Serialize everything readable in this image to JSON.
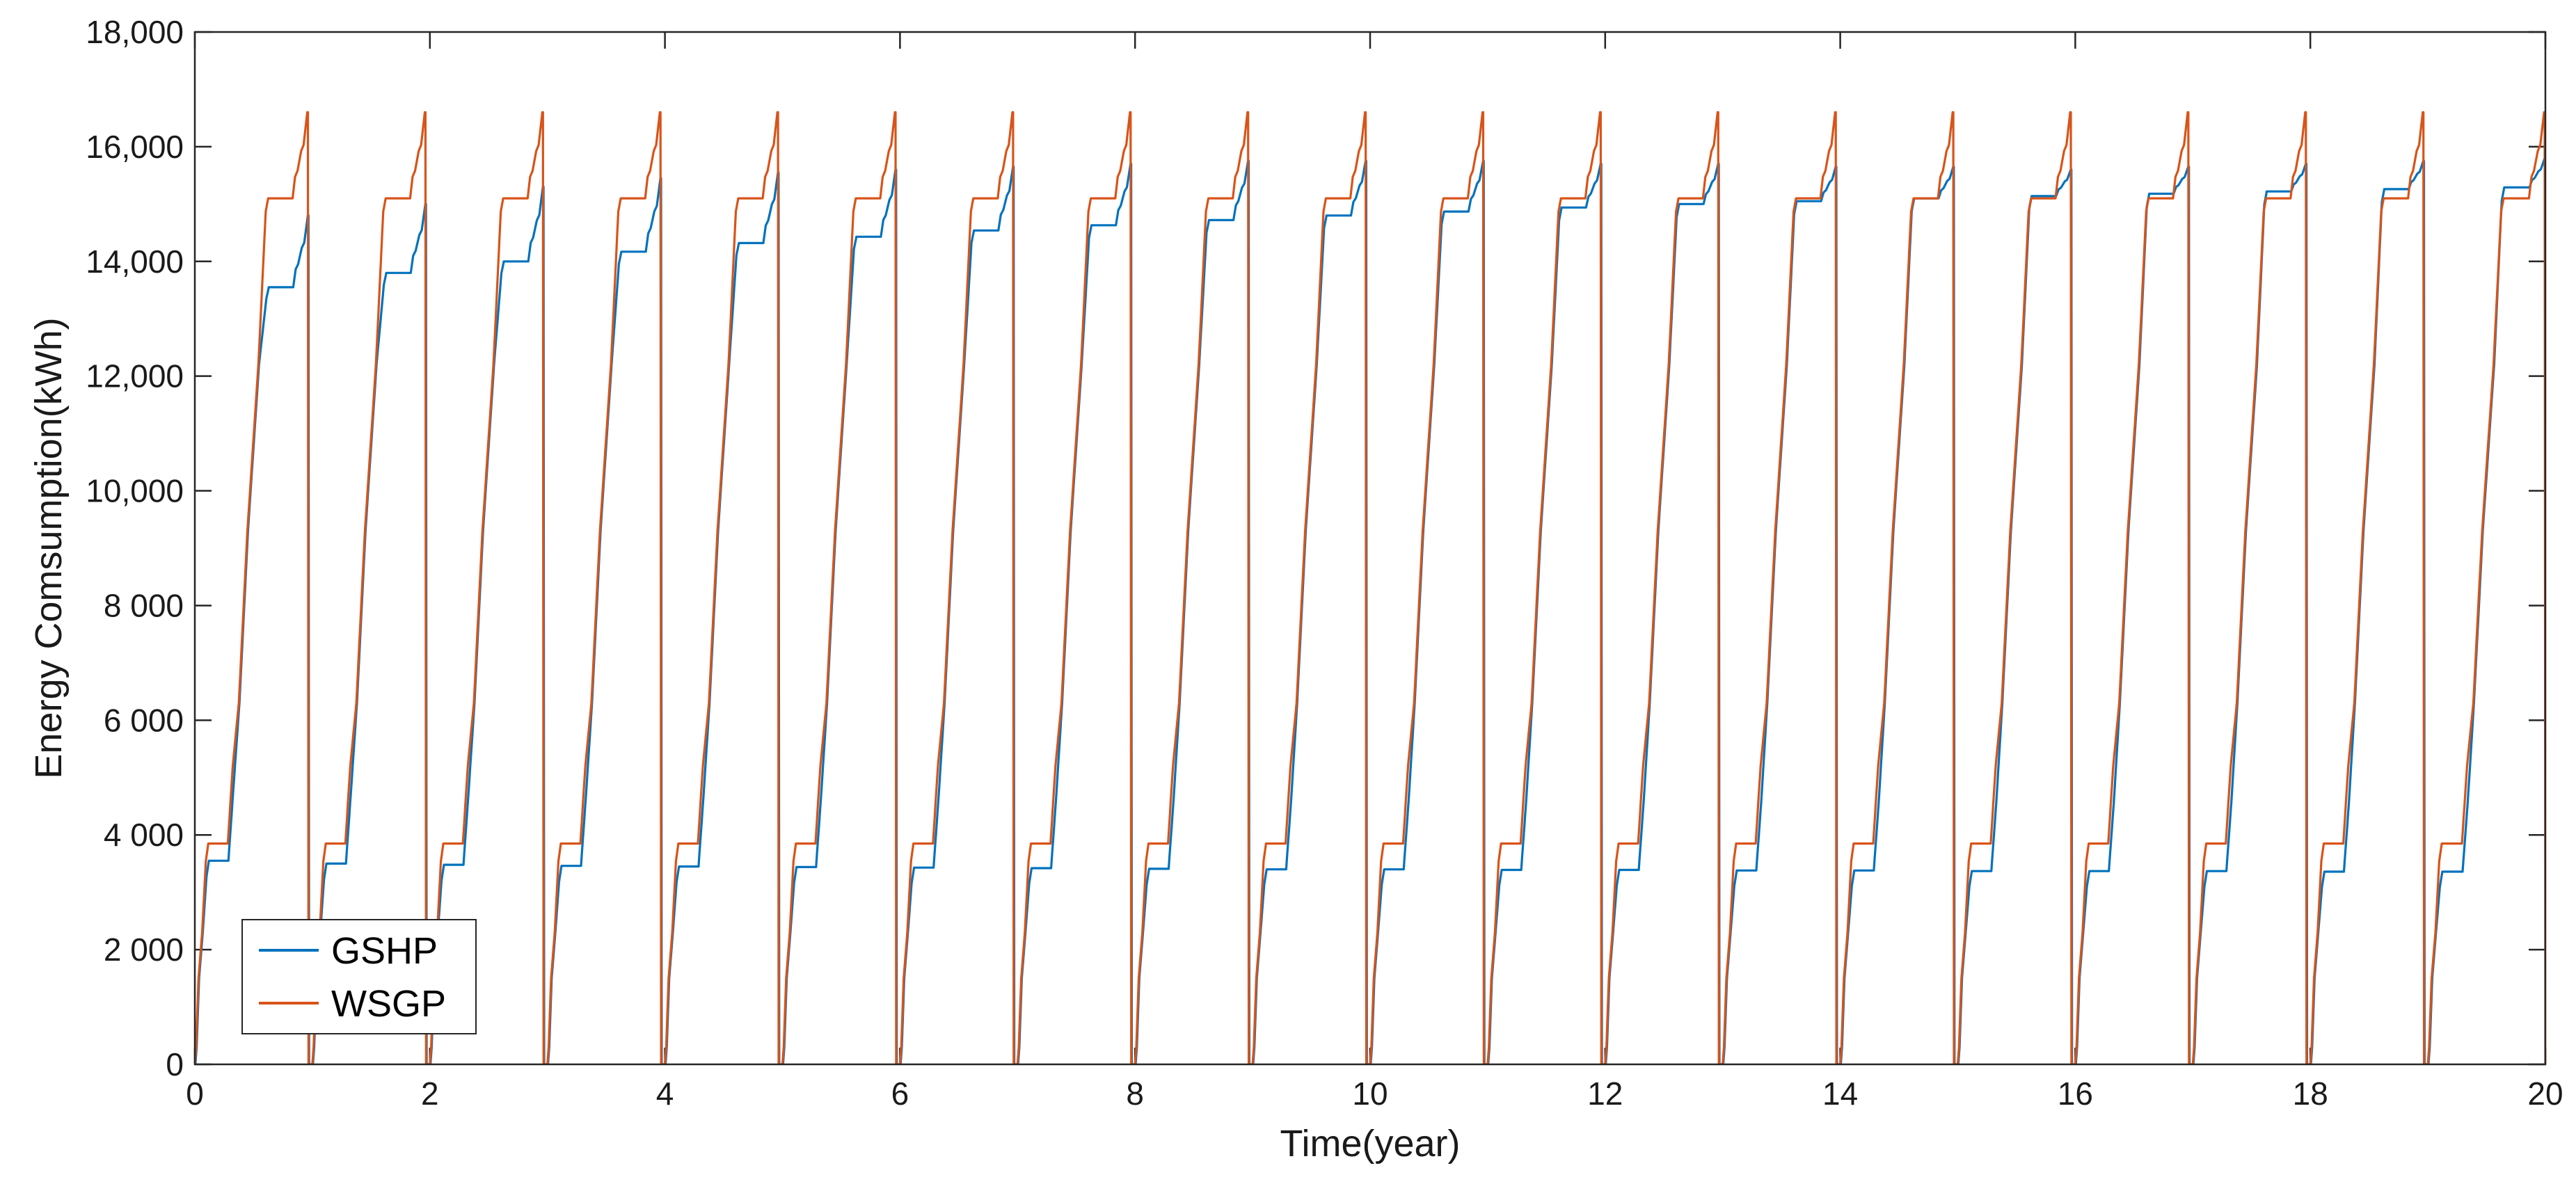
{
  "chart_data": {
    "type": "line",
    "title": "",
    "xlabel": "Time(year)",
    "ylabel": "Energy Comsumption(kWh)",
    "xlim": [
      0,
      20
    ],
    "ylim": [
      0,
      18000
    ],
    "grid": false,
    "legend_position": "bottom-left",
    "x_ticks": [
      0,
      2,
      4,
      6,
      8,
      10,
      12,
      14,
      16,
      18,
      20
    ],
    "x_tick_labels": [
      "0",
      "2",
      "4",
      "6",
      "8",
      "10",
      "12",
      "14",
      "16",
      "18",
      "20"
    ],
    "y_ticks": [
      0,
      2000,
      4000,
      6000,
      8000,
      10000,
      12000,
      14000,
      16000,
      18000
    ],
    "y_tick_labels": [
      "0",
      "2 000",
      "4 000",
      "6 000",
      "8 000",
      "10,000",
      "12,000",
      "14,000",
      "16,000",
      "18,000"
    ],
    "series": [
      {
        "name": "GSHP",
        "color": "#0072BD",
        "description_of_cycle": "annual cumulative consumption resetting to 0 each year",
        "annual_plateau_low": [
          3550,
          3500,
          3480,
          3460,
          3450,
          3440,
          3430,
          3420,
          3410,
          3400,
          3400,
          3390,
          3390,
          3380,
          3380,
          3370,
          3370,
          3370,
          3360,
          3360
        ],
        "annual_plateau_high": [
          13550,
          13800,
          14000,
          14170,
          14320,
          14430,
          14540,
          14630,
          14720,
          14800,
          14870,
          14940,
          15000,
          15050,
          15100,
          15140,
          15180,
          15220,
          15260,
          15290
        ],
        "annual_peak": [
          14800,
          15000,
          15300,
          15450,
          15550,
          15600,
          15650,
          15700,
          15750,
          15750,
          15750,
          15700,
          15700,
          15650,
          15650,
          15600,
          15650,
          15700,
          15750,
          15800
        ]
      },
      {
        "name": "WSGP",
        "color": "#D95319",
        "description_of_cycle": "annual cumulative consumption resetting to 0 each year",
        "annual_plateau_low": [
          3850,
          3850,
          3850,
          3850,
          3850,
          3850,
          3850,
          3850,
          3850,
          3850,
          3850,
          3850,
          3850,
          3850,
          3850,
          3850,
          3850,
          3850,
          3850,
          3850
        ],
        "annual_plateau_high": [
          15100,
          15100,
          15100,
          15100,
          15100,
          15100,
          15100,
          15100,
          15100,
          15100,
          15100,
          15100,
          15100,
          15100,
          15100,
          15100,
          15100,
          15100,
          15100,
          15100
        ],
        "annual_peak": [
          16600,
          16600,
          16600,
          16600,
          16600,
          16600,
          16600,
          16600,
          16600,
          16600,
          16600,
          16600,
          16600,
          16600,
          16600,
          16600,
          16600,
          16600,
          16600,
          16600
        ]
      }
    ]
  }
}
